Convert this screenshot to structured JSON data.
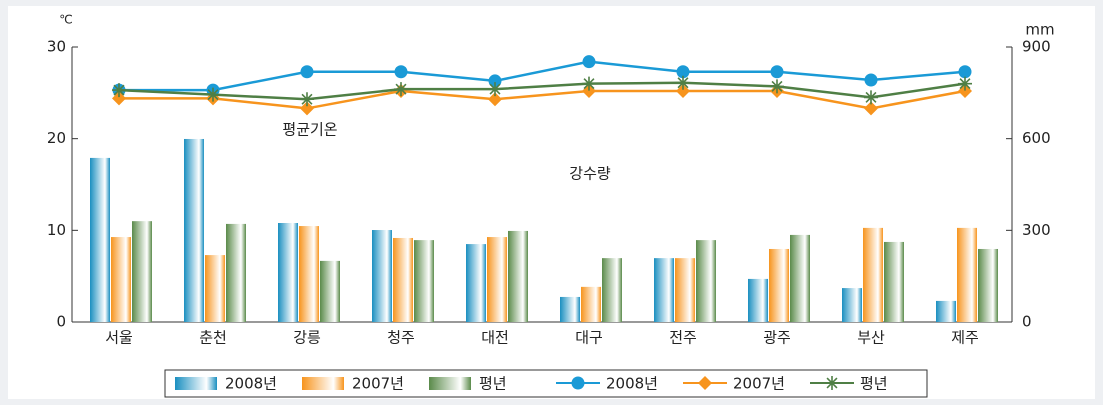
{
  "chart_data": {
    "type": "bar",
    "y_unit": "℃",
    "y2_unit": "mm",
    "annotations": [
      "평균기온",
      "강수량"
    ],
    "categories": [
      "서울",
      "춘천",
      "강릉",
      "청주",
      "대전",
      "대구",
      "전주",
      "광주",
      "부산",
      "제주"
    ],
    "ylim": [
      0,
      30
    ],
    "yticks": [
      0,
      10,
      20,
      30
    ],
    "y2lim": [
      0,
      900
    ],
    "y2ticks": [
      0,
      300,
      600,
      900
    ],
    "series": [
      {
        "name": "2008년",
        "type": "bar",
        "axis": "y2",
        "color": "#1a8fc0",
        "values": [
          537,
          599,
          324,
          301,
          255,
          82,
          209,
          141,
          111,
          69
        ]
      },
      {
        "name": "2007년",
        "type": "bar",
        "axis": "y2",
        "color": "#f7941d",
        "values": [
          278,
          219,
          314,
          275,
          278,
          115,
          209,
          239,
          308,
          308
        ]
      },
      {
        "name": "평년",
        "type": "bar",
        "axis": "y2",
        "color": "#5a8a4a",
        "values": [
          330,
          321,
          200,
          268,
          298,
          209,
          268,
          285,
          262,
          239
        ]
      },
      {
        "name": "2008년",
        "type": "line",
        "marker": "circle",
        "color": "#1a9ad6",
        "values": [
          25.3,
          25.3,
          27.3,
          27.3,
          26.3,
          28.4,
          27.3,
          27.3,
          26.4,
          27.3
        ]
      },
      {
        "name": "2007년",
        "type": "line",
        "marker": "diamond",
        "color": "#f7941d",
        "values": [
          24.4,
          24.4,
          23.3,
          25.2,
          24.3,
          25.2,
          25.2,
          25.2,
          23.3,
          25.2
        ]
      },
      {
        "name": "평년",
        "type": "line",
        "marker": "star",
        "color": "#4f7f45",
        "values": [
          25.3,
          24.8,
          24.3,
          25.4,
          25.4,
          26.0,
          26.1,
          25.7,
          24.5,
          26.0
        ]
      }
    ]
  }
}
